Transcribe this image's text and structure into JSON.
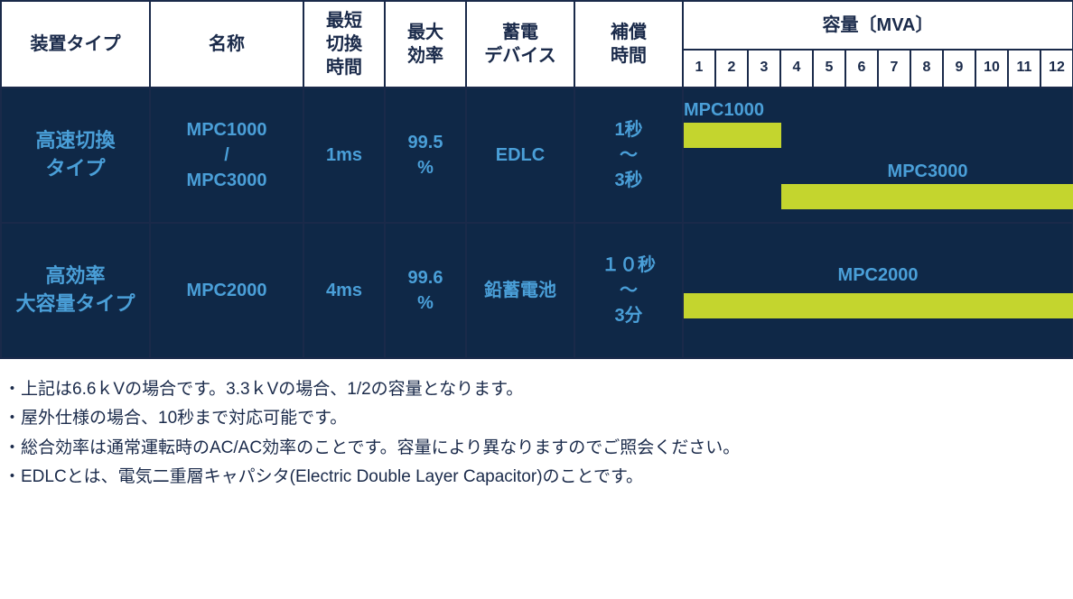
{
  "headers": {
    "col1": "装置タイプ",
    "col2": "名称",
    "col3": "最短\n切換\n時間",
    "col4": "最大\n効率",
    "col5": "蓄電\nデバイス",
    "col6": "補償\n時間",
    "capacity_title": "容量〔MVA〕",
    "capacity_nums": [
      "1",
      "2",
      "3",
      "4",
      "5",
      "6",
      "7",
      "8",
      "9",
      "10",
      "11",
      "12"
    ]
  },
  "rows": [
    {
      "type": "高速切換\nタイプ",
      "name": "MPC1000\n/\nMPC3000",
      "switch_time": "1ms",
      "efficiency": "99.5\n%",
      "device": "EDLC",
      "comp_time": "1秒\n～\n3秒",
      "bars": [
        {
          "label": "MPC1000",
          "start": 1,
          "end": 3,
          "label_align": "left"
        },
        {
          "label": "MPC3000",
          "start": 4,
          "end": 12,
          "label_align": "right"
        }
      ]
    },
    {
      "type": "高効率\n大容量タイプ",
      "name": "MPC2000",
      "switch_time": "4ms",
      "efficiency": "99.6\n%",
      "device": "鉛蓄電池",
      "comp_time": "１０秒\n～\n3分",
      "bars": [
        {
          "label": "MPC2000",
          "start": 1,
          "end": 12,
          "label_align": "center"
        }
      ]
    }
  ],
  "colors": {
    "border": "#1a2a4a",
    "header_bg": "#ffffff",
    "header_text": "#1a2a4a",
    "body_bg": "#0f2847",
    "body_text": "#4a9fd8",
    "bar_color": "#c4d52e",
    "footnote_text": "#1a2a4a"
  },
  "footnotes": [
    "・上記は6.6ｋVの場合です。3.3ｋVの場合、1/2の容量となります。",
    "・屋外仕様の場合、10秒まで対応可能です。",
    "・総合効率は通常運転時のAC/AC効率のことです。容量により異なりますのでご照会ください。",
    "・EDLCとは、電気二重層キャパシタ(Electric Double Layer Capacitor)のことです。"
  ],
  "layout": {
    "col_widths": {
      "type": 165,
      "name": 170,
      "switch": 90,
      "efficiency": 90,
      "device": 120,
      "comp": 120,
      "capacity_unit": 36
    }
  }
}
